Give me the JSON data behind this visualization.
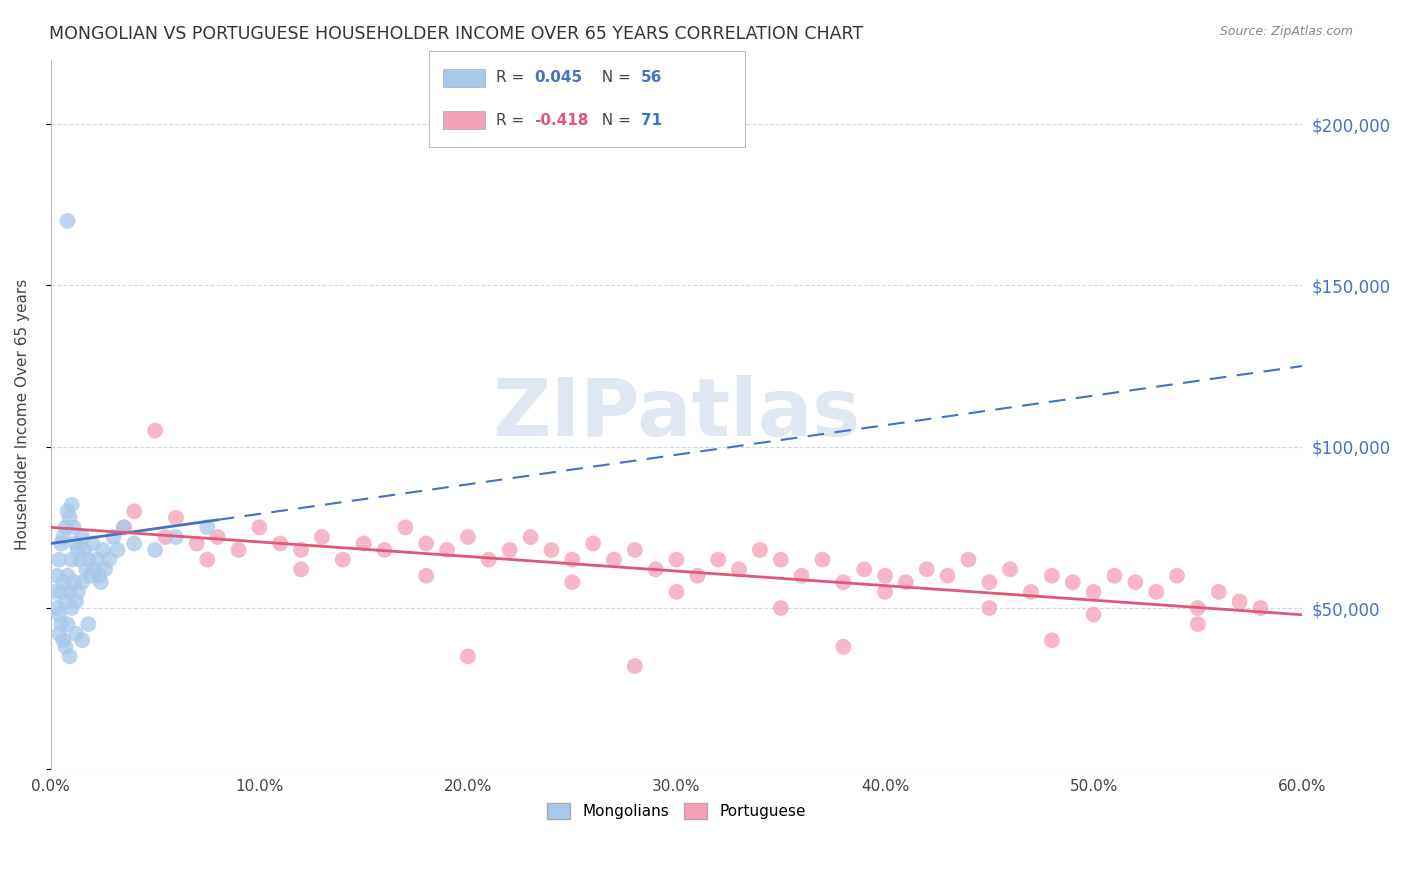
{
  "title": "MONGOLIAN VS PORTUGUESE HOUSEHOLDER INCOME OVER 65 YEARS CORRELATION CHART",
  "source": "Source: ZipAtlas.com",
  "ylabel": "Householder Income Over 65 years",
  "xlabel_vals": [
    0,
    10,
    20,
    30,
    40,
    50,
    60
  ],
  "ytick_vals": [
    0,
    50000,
    100000,
    150000,
    200000
  ],
  "ytick_labels": [
    "",
    "$50,000",
    "$100,000",
    "$150,000",
    "$200,000"
  ],
  "ymax": 220000,
  "mongolian_R": 0.045,
  "mongolian_N": 56,
  "portuguese_R": -0.418,
  "portuguese_N": 71,
  "scatter_color_mongo": "#a8c8e8",
  "scatter_color_port": "#f4a0b8",
  "line_color_mongo": "#4472c4",
  "line_color_port": "#e05878",
  "background_color": "#ffffff",
  "grid_color": "#d0d8e8",
  "watermark": "ZIPatlas",
  "watermark_color": "#c8d8ea",
  "mongo_x": [
    0.2,
    0.3,
    0.3,
    0.4,
    0.4,
    0.5,
    0.5,
    0.5,
    0.6,
    0.6,
    0.7,
    0.7,
    0.8,
    0.8,
    0.8,
    0.9,
    0.9,
    1.0,
    1.0,
    1.0,
    1.1,
    1.1,
    1.2,
    1.2,
    1.3,
    1.3,
    1.4,
    1.5,
    1.5,
    1.6,
    1.7,
    1.8,
    1.9,
    2.0,
    2.1,
    2.2,
    2.3,
    2.4,
    2.5,
    2.6,
    2.8,
    3.0,
    3.2,
    3.5,
    4.0,
    5.0,
    6.0,
    7.5,
    0.4,
    0.6,
    0.7,
    0.9,
    1.2,
    1.5,
    1.8,
    0.8
  ],
  "mongo_y": [
    55000,
    60000,
    50000,
    65000,
    48000,
    70000,
    55000,
    45000,
    72000,
    58000,
    75000,
    52000,
    80000,
    60000,
    45000,
    78000,
    55000,
    82000,
    65000,
    50000,
    75000,
    58000,
    70000,
    52000,
    68000,
    55000,
    65000,
    72000,
    58000,
    68000,
    62000,
    65000,
    60000,
    70000,
    62000,
    65000,
    60000,
    58000,
    68000,
    62000,
    65000,
    72000,
    68000,
    75000,
    70000,
    68000,
    72000,
    75000,
    42000,
    40000,
    38000,
    35000,
    42000,
    40000,
    45000,
    170000
  ],
  "port_x": [
    3.5,
    4.0,
    5.0,
    5.5,
    6.0,
    7.0,
    8.0,
    9.0,
    10.0,
    11.0,
    12.0,
    13.0,
    14.0,
    15.0,
    16.0,
    17.0,
    18.0,
    19.0,
    20.0,
    21.0,
    22.0,
    23.0,
    24.0,
    25.0,
    26.0,
    27.0,
    28.0,
    29.0,
    30.0,
    31.0,
    32.0,
    33.0,
    34.0,
    35.0,
    36.0,
    37.0,
    38.0,
    39.0,
    40.0,
    41.0,
    42.0,
    43.0,
    44.0,
    45.0,
    46.0,
    47.0,
    48.0,
    49.0,
    50.0,
    51.0,
    52.0,
    53.0,
    54.0,
    55.0,
    56.0,
    57.0,
    58.0,
    7.5,
    12.0,
    18.0,
    25.0,
    30.0,
    35.0,
    40.0,
    45.0,
    50.0,
    55.0,
    20.0,
    28.0,
    38.0,
    48.0
  ],
  "port_y": [
    75000,
    80000,
    105000,
    72000,
    78000,
    70000,
    72000,
    68000,
    75000,
    70000,
    68000,
    72000,
    65000,
    70000,
    68000,
    75000,
    70000,
    68000,
    72000,
    65000,
    68000,
    72000,
    68000,
    65000,
    70000,
    65000,
    68000,
    62000,
    65000,
    60000,
    65000,
    62000,
    68000,
    65000,
    60000,
    65000,
    58000,
    62000,
    60000,
    58000,
    62000,
    60000,
    65000,
    58000,
    62000,
    55000,
    60000,
    58000,
    55000,
    60000,
    58000,
    55000,
    60000,
    50000,
    55000,
    52000,
    50000,
    65000,
    62000,
    60000,
    58000,
    55000,
    50000,
    55000,
    50000,
    48000,
    45000,
    35000,
    32000,
    38000,
    40000
  ]
}
